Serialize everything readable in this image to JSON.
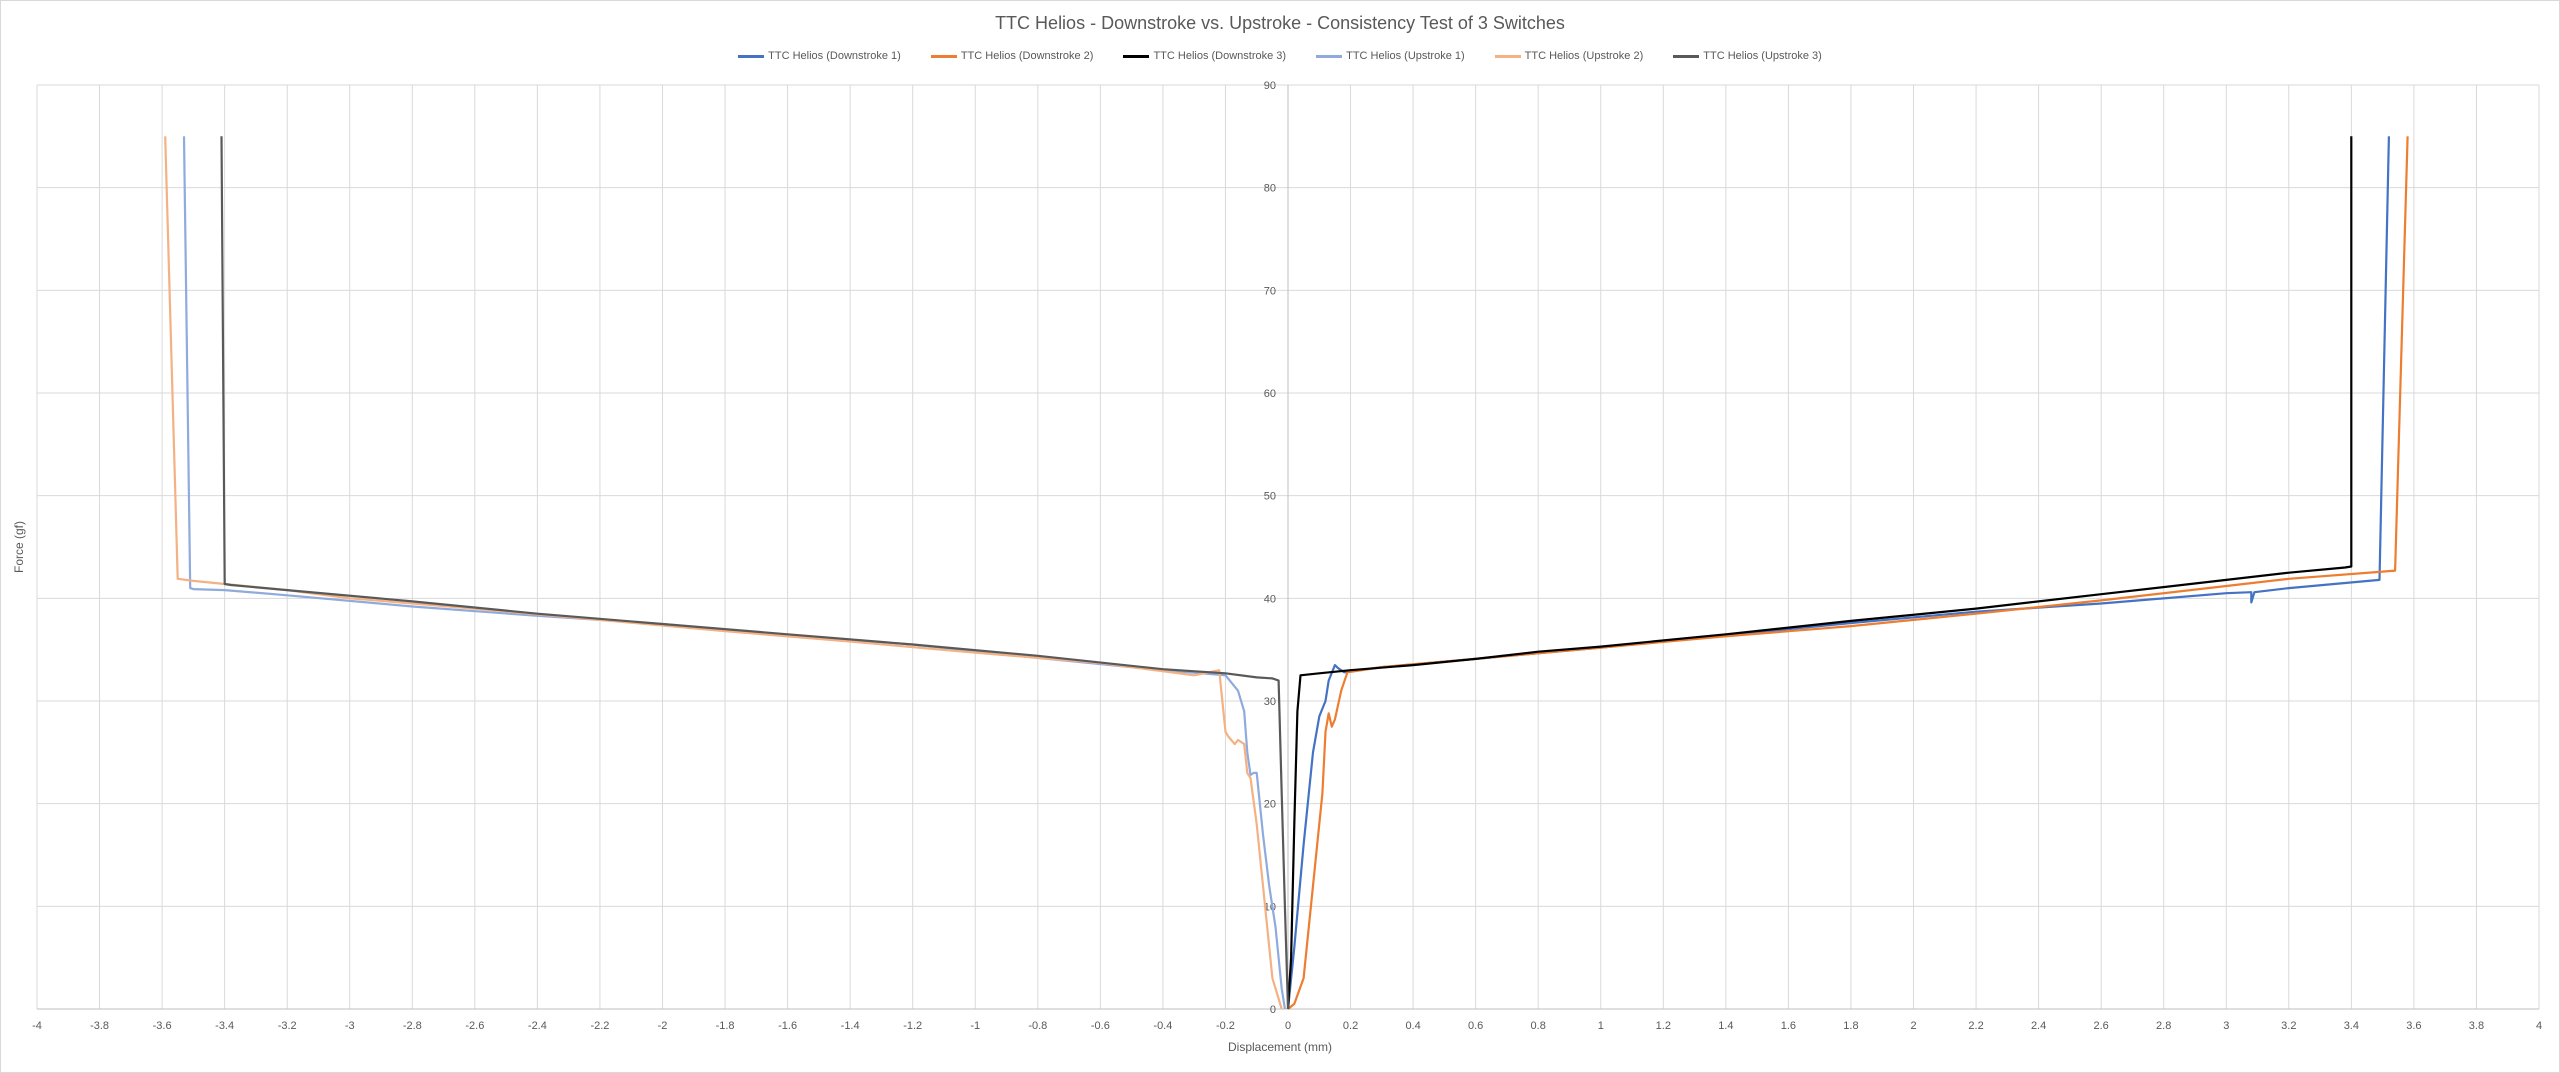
{
  "chart_data": {
    "type": "line",
    "title": "TTC Helios - Downstroke vs. Upstroke - Consistency Test of 3 Switches",
    "xlabel": "Displacement (mm)",
    "ylabel": "Force (gf)",
    "xlim": [
      -4,
      4
    ],
    "ylim": [
      0,
      90
    ],
    "x_ticks": [
      "-4",
      "-3.8",
      "-3.6",
      "-3.4",
      "-3.2",
      "-3",
      "-2.8",
      "-2.6",
      "-2.4",
      "-2.2",
      "-2",
      "-1.8",
      "-1.6",
      "-1.4",
      "-1.2",
      "-1",
      "-0.8",
      "-0.6",
      "-0.4",
      "-0.2",
      "0",
      "0.2",
      "0.4",
      "0.6",
      "0.8",
      "1",
      "1.2",
      "1.4",
      "1.6",
      "1.8",
      "2",
      "2.2",
      "2.4",
      "2.6",
      "2.8",
      "3",
      "3.2",
      "3.4",
      "3.6",
      "3.8",
      "4"
    ],
    "y_ticks": [
      "0",
      "10",
      "20",
      "30",
      "40",
      "50",
      "60",
      "70",
      "80",
      "90"
    ],
    "grid": true,
    "legend_position": "top",
    "series": [
      {
        "name": "TTC Helios (Downstroke 1)",
        "color": "#4472c4",
        "x": [
          0,
          0.02,
          0.05,
          0.08,
          0.1,
          0.12,
          0.13,
          0.15,
          0.16,
          0.18,
          0.3,
          0.6,
          1.0,
          1.4,
          1.8,
          2.2,
          2.6,
          3.0,
          3.08,
          3.08,
          3.09,
          3.2,
          3.49,
          3.52
        ],
        "y": [
          0,
          6,
          16,
          25,
          28.5,
          30,
          32,
          33.5,
          33.2,
          32.8,
          33.3,
          34.1,
          35.2,
          36.4,
          37.6,
          38.7,
          39.5,
          40.5,
          40.6,
          39.6,
          40.6,
          41,
          41.8,
          85
        ]
      },
      {
        "name": "TTC Helios (Downstroke 2)",
        "color": "#ed7d31",
        "x": [
          0,
          0.02,
          0.05,
          0.08,
          0.11,
          0.12,
          0.13,
          0.14,
          0.15,
          0.17,
          0.19,
          0.3,
          0.6,
          1.0,
          1.4,
          1.8,
          2.2,
          2.6,
          3.0,
          3.2,
          3.5,
          3.54,
          3.58
        ],
        "y": [
          0,
          0.5,
          3,
          12,
          21,
          27,
          28.8,
          27.5,
          28.2,
          31,
          32.8,
          33.3,
          34.1,
          35.2,
          36.3,
          37.3,
          38.5,
          39.8,
          41.2,
          41.9,
          42.6,
          42.7,
          85
        ]
      },
      {
        "name": "TTC Helios (Downstroke 3)",
        "color": "#000000",
        "x": [
          0,
          0.01,
          0.02,
          0.03,
          0.04,
          0.1,
          0.2,
          0.4,
          0.6,
          0.8,
          1.0,
          1.4,
          1.8,
          2.2,
          2.6,
          3.0,
          3.2,
          3.38,
          3.4,
          3.4
        ],
        "y": [
          0,
          5,
          18,
          29,
          32.5,
          32.7,
          33.0,
          33.5,
          34.1,
          34.8,
          35.3,
          36.5,
          37.8,
          39.0,
          40.4,
          41.8,
          42.5,
          43,
          43.1,
          85
        ]
      },
      {
        "name": "TTC Helios (Upstroke 1)",
        "color": "#8faadc",
        "x": [
          -0.01,
          -0.02,
          -0.04,
          -0.06,
          -0.08,
          -0.1,
          -0.11,
          -0.12,
          -0.13,
          -0.14,
          -0.16,
          -0.2,
          -0.4,
          -0.8,
          -1.2,
          -1.6,
          -2.0,
          -2.4,
          -2.8,
          -3.2,
          -3.4,
          -3.5,
          -3.51,
          -3.53
        ],
        "y": [
          0,
          2,
          8,
          12,
          17,
          23,
          23,
          22.8,
          25,
          29,
          31,
          32.5,
          33,
          34.2,
          35.5,
          36.4,
          37.5,
          38.3,
          39.2,
          40.3,
          40.8,
          40.9,
          41,
          85
        ]
      },
      {
        "name": "TTC Helios (Upstroke 2)",
        "color": "#f4b183",
        "x": [
          -0.02,
          -0.05,
          -0.08,
          -0.1,
          -0.12,
          -0.13,
          -0.14,
          -0.16,
          -0.17,
          -0.19,
          -0.2,
          -0.22,
          -0.3,
          -0.6,
          -1.0,
          -1.4,
          -1.8,
          -2.2,
          -2.6,
          -3.0,
          -3.2,
          -3.4,
          -3.5,
          -3.55,
          -3.59
        ],
        "y": [
          0,
          3,
          12,
          18,
          22.5,
          23,
          25.8,
          26.2,
          25.8,
          26.5,
          27,
          33,
          32.5,
          33.7,
          34.7,
          35.8,
          36.8,
          37.9,
          39.0,
          40.0,
          40.8,
          41.4,
          41.7,
          41.9,
          85
        ]
      },
      {
        "name": "TTC Helios (Upstroke 3)",
        "color": "#595959",
        "x": [
          0,
          -0.01,
          -0.02,
          -0.03,
          -0.05,
          -0.1,
          -0.2,
          -0.4,
          -0.8,
          -1.2,
          -1.6,
          -2.0,
          -2.4,
          -2.8,
          -3.2,
          -3.38,
          -3.4,
          -3.41
        ],
        "y": [
          0,
          10,
          21,
          32,
          32.2,
          32.3,
          32.7,
          33.1,
          34.4,
          35.5,
          36.5,
          37.5,
          38.5,
          39.7,
          40.8,
          41.3,
          41.4,
          85
        ]
      }
    ]
  }
}
